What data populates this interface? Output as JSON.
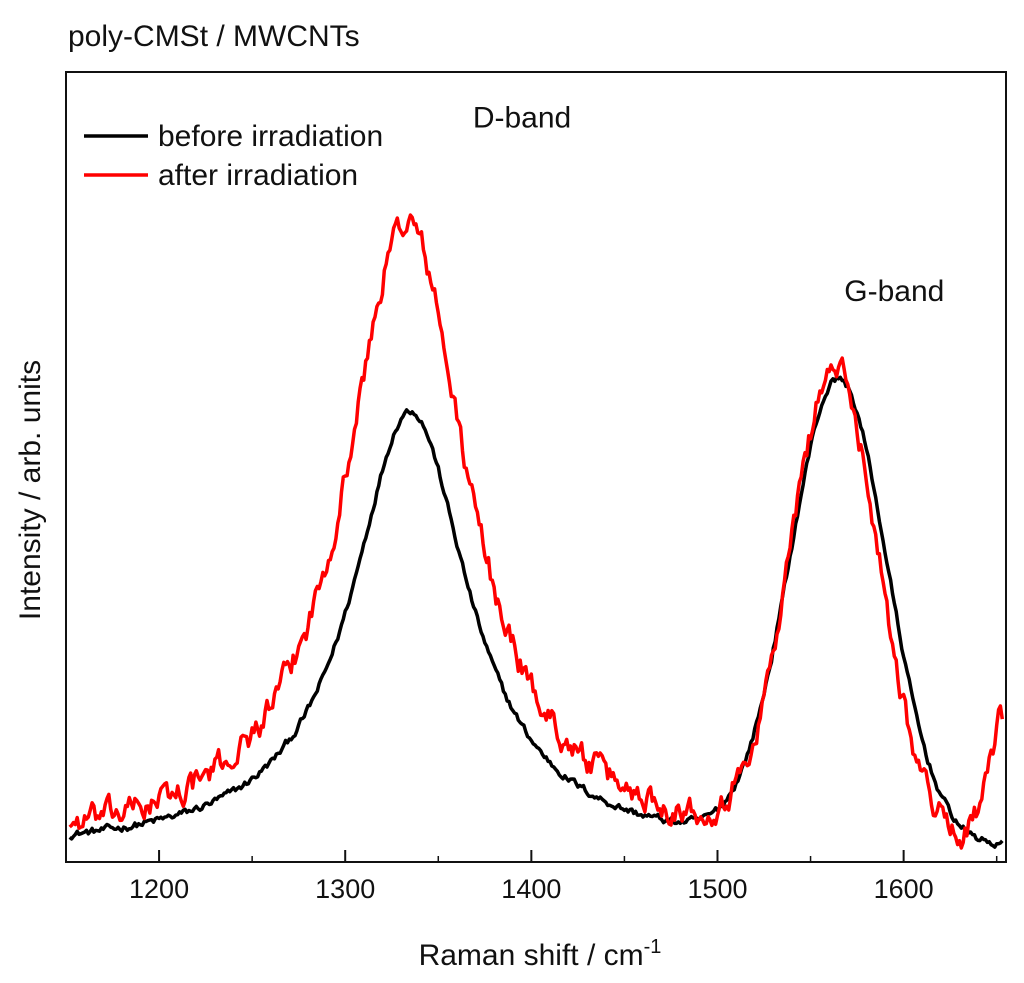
{
  "chart_data": {
    "type": "line",
    "title": "poly-CMSt / MWCNTs",
    "xlabel": "Raman shift / cm",
    "xlabel_superscript": "-1",
    "ylabel": "Intensity / arb. units",
    "xlim": [
      1150,
      1655
    ],
    "ylim": [
      0,
      1.0
    ],
    "xticks": [
      1200,
      1300,
      1400,
      1500,
      1600
    ],
    "grid": false,
    "legend_position": "top-left",
    "annotations": [
      {
        "label": "D-band",
        "x": 1395,
        "y": 0.93
      },
      {
        "label": "G-band",
        "x": 1595,
        "y": 0.71
      }
    ],
    "series": [
      {
        "name": "before irradiation",
        "color": "#000000",
        "peaks": [
          {
            "center": 1335,
            "height": 0.56,
            "width": 38,
            "shape": "lorentzian"
          },
          {
            "center": 1565,
            "height": 0.585,
            "width": 33,
            "shape": "gaussian"
          }
        ],
        "noise": 0.004
      },
      {
        "name": "after irradiation",
        "color": "#ff0000",
        "peaks": [
          {
            "center": 1333,
            "height": 0.8,
            "width": 40,
            "shape": "lorentzian"
          },
          {
            "center": 1563,
            "height": 0.59,
            "width": 30,
            "shape": "gaussian"
          }
        ],
        "noise": 0.014,
        "tail": {
          "start": 1628,
          "end": 1652,
          "rise": 0.16
        }
      }
    ]
  }
}
